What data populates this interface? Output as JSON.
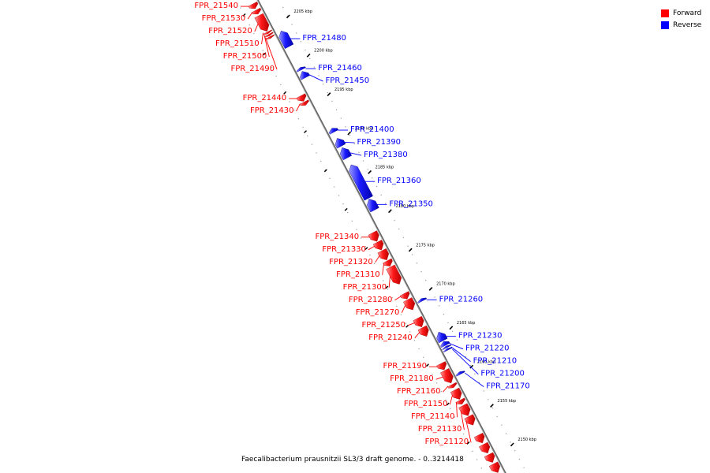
{
  "legend": {
    "forward_label": "Forward",
    "reverse_label": "Reverse",
    "forward_color": "#ff0000",
    "reverse_color": "#0000ff"
  },
  "caption": "Faecalibacterium prausnitzii SL3/3 draft genome. - 0..3214418",
  "ticks": [
    {
      "label": "2205 kbp",
      "kbp": 2205
    },
    {
      "label": "2200 kbp",
      "kbp": 2200
    },
    {
      "label": "2195 kbp",
      "kbp": 2195
    },
    {
      "label": "2190 kbp",
      "kbp": 2190
    },
    {
      "label": "2185 kbp",
      "kbp": 2185
    },
    {
      "label": "2180 kbp",
      "kbp": 2180
    },
    {
      "label": "2175 kbp",
      "kbp": 2175
    },
    {
      "label": "2170 kbp",
      "kbp": 2170
    },
    {
      "label": "2165 kbp",
      "kbp": 2165
    },
    {
      "label": "2160 kbp",
      "kbp": 2160
    },
    {
      "label": "2155 kbp",
      "kbp": 2155
    },
    {
      "label": "2150 kbp",
      "kbp": 2150
    }
  ],
  "genes": [
    {
      "name": "FPR_21540",
      "strand": "forward",
      "start": 2208.2,
      "end": 2207.6
    },
    {
      "name": "FPR_21530",
      "strand": "forward",
      "start": 2207.4,
      "end": 2206.9
    },
    {
      "name": "FPR_21520",
      "strand": "forward",
      "start": 2206.7,
      "end": 2204.7
    },
    {
      "name": "FPR_21510",
      "strand": "forward",
      "start": 2204.6,
      "end": 2204.4
    },
    {
      "name": "FPR_21500",
      "strand": "forward",
      "start": 2204.3,
      "end": 2204.1
    },
    {
      "name": "FPR_21490",
      "strand": "forward",
      "start": 2204.0,
      "end": 2203.8
    },
    {
      "name": "FPR_21480",
      "strand": "reverse",
      "start": 2204.0,
      "end": 2202.0
    },
    {
      "name": "FPR_21460",
      "strand": "reverse",
      "start": 2199.3,
      "end": 2199.0
    },
    {
      "name": "FPR_21450",
      "strand": "reverse",
      "start": 2198.8,
      "end": 2198.0
    },
    {
      "name": "FPR_21440",
      "strand": "forward",
      "start": 2196.4,
      "end": 2195.7
    },
    {
      "name": "FPR_21430",
      "strand": "forward",
      "start": 2195.6,
      "end": 2195.2
    },
    {
      "name": "FPR_21400",
      "strand": "reverse",
      "start": 2191.5,
      "end": 2191.0
    },
    {
      "name": "FPR_21390",
      "strand": "reverse",
      "start": 2190.2,
      "end": 2189.2
    },
    {
      "name": "FPR_21380",
      "strand": "reverse",
      "start": 2189.0,
      "end": 2187.7
    },
    {
      "name": "FPR_21360",
      "strand": "reverse",
      "start": 2186.8,
      "end": 2182.5
    },
    {
      "name": "FPR_21350",
      "strand": "reverse",
      "start": 2182.4,
      "end": 2181.0
    },
    {
      "name": "FPR_21340",
      "strand": "forward",
      "start": 2178.8,
      "end": 2177.7
    },
    {
      "name": "FPR_21330",
      "strand": "forward",
      "start": 2177.6,
      "end": 2176.6
    },
    {
      "name": "FPR_21320",
      "strand": "forward",
      "start": 2176.5,
      "end": 2175.3
    },
    {
      "name": "FPR_21310",
      "strand": "forward",
      "start": 2175.2,
      "end": 2174.5
    },
    {
      "name": "FPR_21300",
      "strand": "forward",
      "start": 2174.4,
      "end": 2172.2
    },
    {
      "name": "FPR_21280",
      "strand": "forward",
      "start": 2171.0,
      "end": 2170.3
    },
    {
      "name": "FPR_21270",
      "strand": "forward",
      "start": 2170.2,
      "end": 2168.9
    },
    {
      "name": "FPR_21260",
      "strand": "reverse",
      "start": 2169.6,
      "end": 2169.3
    },
    {
      "name": "FPR_21250",
      "strand": "forward",
      "start": 2167.8,
      "end": 2166.7
    },
    {
      "name": "FPR_21240",
      "strand": "forward",
      "start": 2166.6,
      "end": 2165.5
    },
    {
      "name": "FPR_21230",
      "strand": "reverse",
      "start": 2165.3,
      "end": 2164.2
    },
    {
      "name": "FPR_21220",
      "strand": "reverse",
      "start": 2164.1,
      "end": 2163.6
    },
    {
      "name": "FPR_21210",
      "strand": "reverse",
      "start": 2163.5,
      "end": 2163.3
    },
    {
      "name": "FPR_21200",
      "strand": "reverse",
      "start": 2163.2,
      "end": 2163.0
    },
    {
      "name": "FPR_21190",
      "strand": "forward",
      "start": 2162.0,
      "end": 2161.2
    },
    {
      "name": "FPR_21180",
      "strand": "forward",
      "start": 2161.1,
      "end": 2159.5
    },
    {
      "name": "FPR_21170",
      "strand": "reverse",
      "start": 2160.2,
      "end": 2159.9
    },
    {
      "name": "FPR_21160",
      "strand": "forward",
      "start": 2159.3,
      "end": 2158.9
    },
    {
      "name": "FPR_21150",
      "strand": "forward",
      "start": 2158.6,
      "end": 2157.4
    },
    {
      "name": "FPR_21140",
      "strand": "forward",
      "start": 2157.3,
      "end": 2156.8
    },
    {
      "name": "FPR_21130",
      "strand": "forward",
      "start": 2156.6,
      "end": 2155.3
    },
    {
      "name": "FPR_21120",
      "strand": "forward",
      "start": 2155.2,
      "end": 2154.1
    },
    {
      "name": "",
      "strand": "forward",
      "start": 2152.8,
      "end": 2151.8
    },
    {
      "name": "",
      "strand": "forward",
      "start": 2151.6,
      "end": 2150.5
    },
    {
      "name": "",
      "strand": "forward",
      "start": 2150.3,
      "end": 2149.3
    },
    {
      "name": "",
      "strand": "forward",
      "start": 2149.1,
      "end": 2148.0
    }
  ]
}
